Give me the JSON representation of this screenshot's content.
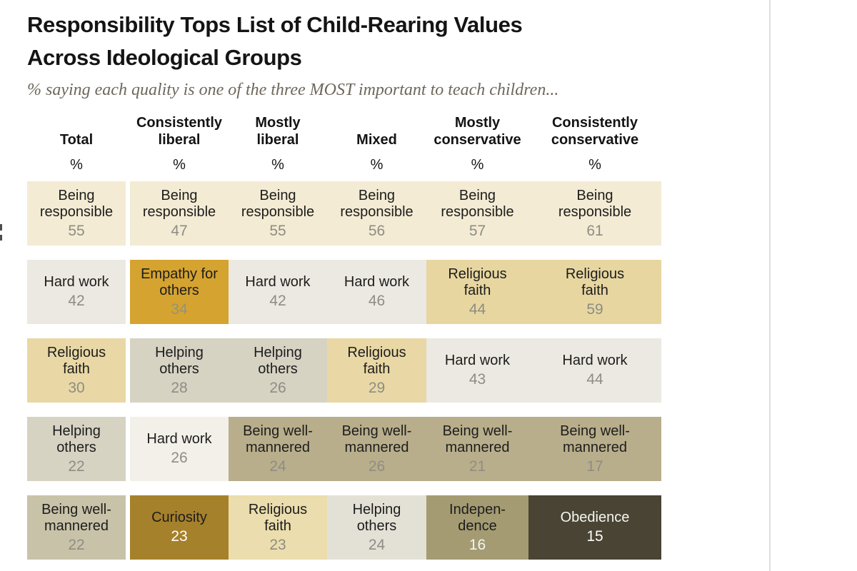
{
  "style": {
    "page_bg": "#ffffff",
    "divider_color": "#dfdfdf",
    "title_color": "#141414",
    "subtitle_color": "#6e675c",
    "header_color": "#141414",
    "default_label_color": "#1d1d1d",
    "default_value_color": "#8e8d84"
  },
  "chart_data": {
    "type": "table",
    "title": "Responsibility Tops List of Child-Rearing Values\nAcross Ideological Groups",
    "subtitle": "% saying each quality is one of the three MOST important to teach children...",
    "columns": [
      {
        "label": "Total",
        "unit": "%"
      },
      {
        "label": "Consistently\nliberal",
        "unit": "%"
      },
      {
        "label": "Mostly\nliberal",
        "unit": "%"
      },
      {
        "label": "Mixed",
        "unit": "%"
      },
      {
        "label": "Mostly\nconservative",
        "unit": "%"
      },
      {
        "label": "Consistently\nconservative",
        "unit": "%"
      }
    ],
    "rows": [
      {
        "cells": [
          {
            "label": "Being\nresponsible",
            "value": 55,
            "bg": "#f3ebd3"
          },
          {
            "label": "Being\nresponsible",
            "value": 47,
            "bg": "#f3ebd3"
          },
          {
            "label": "Being\nresponsible",
            "value": 55,
            "bg": "#f3ebd3"
          },
          {
            "label": "Being\nresponsible",
            "value": 56,
            "bg": "#f3ebd3"
          },
          {
            "label": "Being\nresponsible",
            "value": 57,
            "bg": "#f3ebd3"
          },
          {
            "label": "Being\nresponsible",
            "value": 61,
            "bg": "#f3ebd3"
          }
        ]
      },
      {
        "cells": [
          {
            "label": "Hard work",
            "value": 42,
            "bg": "#ebe9e1"
          },
          {
            "label": "Empathy for\nothers",
            "value": 34,
            "bg": "#d5a32f",
            "value_color": "#95937c"
          },
          {
            "label": "Hard work",
            "value": 42,
            "bg": "#ebe9e1"
          },
          {
            "label": "Hard work",
            "value": 46,
            "bg": "#ebe9e1"
          },
          {
            "label": "Religious\nfaith",
            "value": 44,
            "bg": "#e7d6a0"
          },
          {
            "label": "Religious\nfaith",
            "value": 59,
            "bg": "#e7d6a0"
          }
        ]
      },
      {
        "cells": [
          {
            "label": "Religious\nfaith",
            "value": 30,
            "bg": "#e9d8a5"
          },
          {
            "label": "Helping\nothers",
            "value": 28,
            "bg": "#d6d3c3"
          },
          {
            "label": "Helping\nothers",
            "value": 26,
            "bg": "#d6d3c3"
          },
          {
            "label": "Religious\nfaith",
            "value": 29,
            "bg": "#e9d8a5"
          },
          {
            "label": "Hard work",
            "value": 43,
            "bg": "#ebe9e1"
          },
          {
            "label": "Hard work",
            "value": 44,
            "bg": "#ebe9e1"
          }
        ]
      },
      {
        "cells": [
          {
            "label": "Helping\nothers",
            "value": 22,
            "bg": "#d6d3c3"
          },
          {
            "label": "Hard work",
            "value": 26,
            "bg": "#f2f0e9"
          },
          {
            "label": "Being well-\nmannered",
            "value": 24,
            "bg": "#b9ae8b"
          },
          {
            "label": "Being well-\nmannered",
            "value": 26,
            "bg": "#b9ae8b"
          },
          {
            "label": "Being well-\nmannered",
            "value": 21,
            "bg": "#b9ae8b"
          },
          {
            "label": "Being well-\nmannered",
            "value": 17,
            "bg": "#b9ae8b"
          }
        ]
      },
      {
        "cells": [
          {
            "label": "Being well-\nmannered",
            "value": 22,
            "bg": "#c8c3a8"
          },
          {
            "label": "Curiosity",
            "value": 23,
            "bg": "#a6812b",
            "value_color": "#ffffff"
          },
          {
            "label": "Religious\nfaith",
            "value": 23,
            "bg": "#ebddad"
          },
          {
            "label": "Helping\nothers",
            "value": 24,
            "bg": "#e3e1d5"
          },
          {
            "label": "Indepen-\ndence",
            "value": 16,
            "bg": "#a49b72",
            "value_color": "#f2f4f8"
          },
          {
            "label": "Obedience",
            "value": 15,
            "bg": "#494433",
            "label_color": "#f7f6f1",
            "value_color": "#fcfcfc"
          }
        ]
      }
    ]
  }
}
